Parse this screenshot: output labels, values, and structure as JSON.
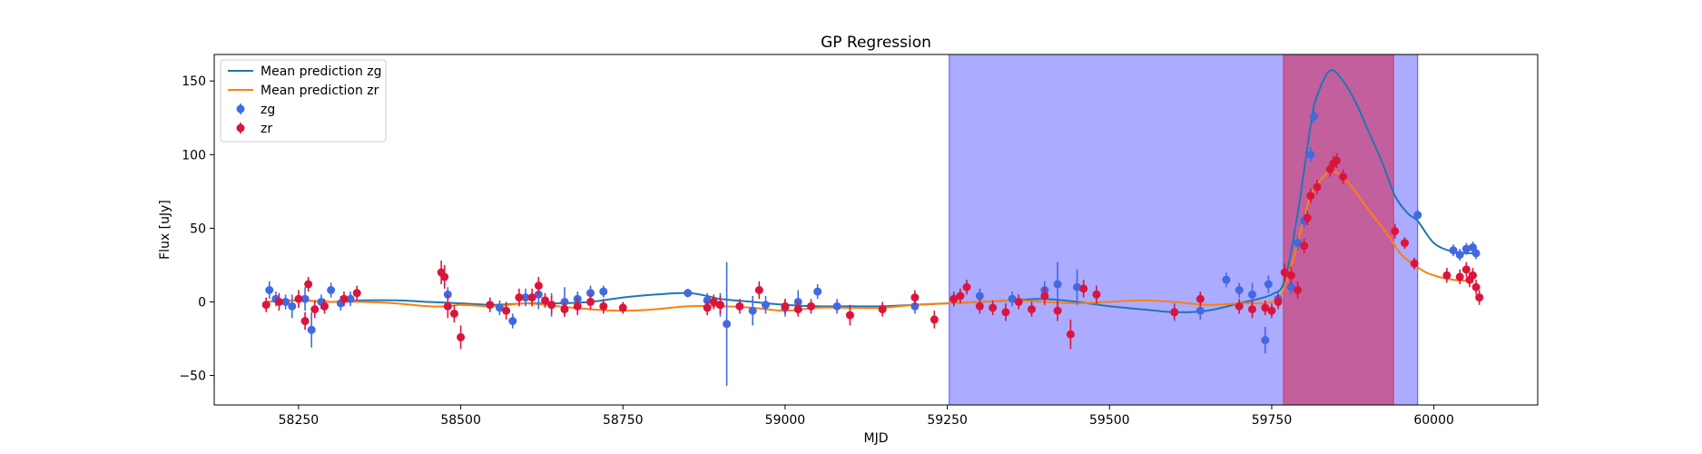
{
  "chart_data": {
    "type": "scatter",
    "title": "GP Regression",
    "xlabel": "MJD",
    "ylabel": "Flux [uJy]",
    "xlim": [
      58120,
      60160
    ],
    "ylim": [
      -70,
      168
    ],
    "xticks": [
      58250,
      58500,
      58750,
      59000,
      59250,
      59500,
      59750,
      60000
    ],
    "yticks": [
      -50,
      0,
      50,
      100,
      150
    ],
    "legend": {
      "placement": "upper left",
      "entries": [
        "Mean prediction zg",
        "Mean prediction zr",
        "zg",
        "zr"
      ]
    },
    "shaded_regions": [
      {
        "x0": 59253,
        "x1": 59975,
        "color": "#0000ff",
        "alpha": 0.33
      },
      {
        "x0": 59768,
        "x1": 59938,
        "color": "#dc143c",
        "alpha": 0.5
      }
    ],
    "colors": {
      "zg": "#4169e1",
      "zr": "#dc143c",
      "mean_zg": "#1f77b4",
      "mean_zr": "#ff7f0e"
    },
    "series": [
      {
        "name": "Mean prediction zg",
        "kind": "line",
        "color": "#1f77b4",
        "x": [
          58200,
          58250,
          58300,
          58350,
          58400,
          58450,
          58500,
          58550,
          58600,
          58650,
          58700,
          58750,
          58800,
          58850,
          58880,
          58900,
          58950,
          59000,
          59050,
          59100,
          59150,
          59200,
          59250,
          59300,
          59350,
          59400,
          59450,
          59500,
          59550,
          59600,
          59650,
          59700,
          59750,
          59770,
          59790,
          59810,
          59820,
          59840,
          59860,
          59880,
          59900,
          59920,
          59940,
          59960,
          59975,
          60000,
          60030,
          60060
        ],
        "y": [
          0,
          1,
          0,
          1,
          1,
          0,
          -1,
          -2,
          -1,
          -1,
          0,
          3,
          5,
          6,
          4,
          2,
          0,
          -2,
          -3,
          -3,
          -3,
          -2,
          -1,
          0,
          1,
          2,
          0,
          -3,
          -5,
          -7,
          -6,
          -1,
          5,
          15,
          60,
          120,
          140,
          157,
          150,
          135,
          115,
          95,
          72,
          60,
          55,
          40,
          34,
          33
        ]
      },
      {
        "name": "Mean prediction zr",
        "kind": "line",
        "color": "#ff7f0e",
        "x": [
          58200,
          58250,
          58300,
          58350,
          58400,
          58450,
          58480,
          58500,
          58550,
          58600,
          58650,
          58700,
          58750,
          58800,
          58850,
          58900,
          58950,
          59000,
          59050,
          59100,
          59150,
          59200,
          59250,
          59300,
          59350,
          59400,
          59450,
          59500,
          59550,
          59600,
          59650,
          59700,
          59750,
          59770,
          59790,
          59810,
          59830,
          59845,
          59870,
          59900,
          59930,
          59950,
          59980,
          60000,
          60030,
          60060
        ],
        "y": [
          0,
          1,
          0,
          0,
          -1,
          -3,
          -3,
          -2,
          -3,
          -1,
          -3,
          -5,
          -6,
          -5,
          -3,
          -3,
          -4,
          -6,
          -4,
          -4,
          -4,
          -2,
          -1,
          0,
          1,
          0,
          -1,
          0,
          1,
          0,
          -2,
          -1,
          0,
          10,
          40,
          72,
          85,
          89,
          80,
          62,
          45,
          32,
          22,
          18,
          15,
          14
        ]
      },
      {
        "name": "zg",
        "kind": "errorbar",
        "color": "#4169e1",
        "x": [
          58205,
          58215,
          58230,
          58240,
          58260,
          58270,
          58285,
          58300,
          58315,
          58330,
          58480,
          58560,
          58580,
          58600,
          58620,
          58640,
          58660,
          58680,
          58700,
          58720,
          58850,
          58880,
          58900,
          58910,
          58950,
          58970,
          59000,
          59020,
          59050,
          59080,
          59200,
          59260,
          59300,
          59350,
          59400,
          59420,
          59450,
          59600,
          59640,
          59680,
          59700,
          59720,
          59740,
          59745,
          59760,
          59780,
          59790,
          59800,
          59810,
          59815,
          59975,
          60030,
          60040,
          60050,
          60060,
          60065
        ],
        "y": [
          8,
          2,
          0,
          -3,
          2,
          -19,
          0,
          8,
          -1,
          2,
          5,
          -4,
          -13,
          3,
          5,
          -2,
          0,
          2,
          6,
          7,
          6,
          1,
          -2,
          -15,
          -6,
          -2,
          -4,
          0,
          7,
          -3,
          -3,
          2,
          4,
          2,
          8,
          12,
          10,
          -7,
          -6,
          15,
          8,
          5,
          -26,
          12,
          2,
          10,
          40,
          55,
          100,
          126,
          59,
          35,
          32,
          36,
          37,
          33
        ],
        "err": [
          6,
          5,
          5,
          8,
          8,
          12,
          5,
          5,
          5,
          5,
          5,
          5,
          5,
          6,
          10,
          8,
          10,
          5,
          5,
          4,
          3,
          5,
          8,
          42,
          10,
          6,
          6,
          8,
          5,
          5,
          5,
          5,
          5,
          5,
          6,
          15,
          12,
          6,
          6,
          5,
          5,
          8,
          9,
          6,
          5,
          5,
          5,
          5,
          5,
          5,
          4,
          4,
          4,
          4,
          4,
          4
        ]
      },
      {
        "name": "zr",
        "kind": "errorbar",
        "color": "#dc143c",
        "x": [
          58200,
          58220,
          58250,
          58260,
          58265,
          58275,
          58290,
          58320,
          58340,
          58470,
          58475,
          58480,
          58490,
          58500,
          58545,
          58570,
          58590,
          58610,
          58620,
          58630,
          58640,
          58660,
          58680,
          58700,
          58720,
          58750,
          58880,
          58890,
          58900,
          58930,
          58960,
          59000,
          59020,
          59040,
          59100,
          59150,
          59200,
          59230,
          59260,
          59270,
          59280,
          59300,
          59320,
          59340,
          59360,
          59380,
          59400,
          59420,
          59440,
          59460,
          59480,
          59600,
          59640,
          59700,
          59720,
          59740,
          59750,
          59760,
          59770,
          59780,
          59790,
          59800,
          59805,
          59810,
          59820,
          59840,
          59845,
          59850,
          59860,
          59940,
          59955,
          59970,
          60020,
          60040,
          60050,
          60055,
          60060,
          60065,
          60070
        ],
        "y": [
          -2,
          0,
          2,
          -13,
          12,
          -5,
          -3,
          2,
          6,
          20,
          17,
          -3,
          -8,
          -24,
          -2,
          -6,
          3,
          3,
          11,
          1,
          -2,
          -5,
          -3,
          0,
          -3,
          -4,
          -4,
          0,
          -2,
          -3,
          8,
          -3,
          -5,
          -3,
          -9,
          -5,
          3,
          -12,
          2,
          4,
          10,
          -3,
          -4,
          -7,
          0,
          -5,
          4,
          -6,
          -22,
          9,
          5,
          -7,
          2,
          -3,
          -5,
          -4,
          -6,
          0,
          20,
          18,
          8,
          38,
          57,
          72,
          78,
          90,
          94,
          96,
          85,
          48,
          40,
          26,
          18,
          17,
          22,
          15,
          18,
          10,
          3
        ],
        "err": [
          5,
          6,
          6,
          6,
          5,
          6,
          5,
          5,
          5,
          8,
          8,
          8,
          6,
          8,
          5,
          6,
          6,
          6,
          6,
          5,
          6,
          5,
          6,
          5,
          5,
          4,
          5,
          5,
          6,
          5,
          6,
          5,
          5,
          5,
          7,
          5,
          5,
          6,
          5,
          5,
          5,
          5,
          5,
          6,
          5,
          5,
          6,
          7,
          10,
          6,
          6,
          5,
          5,
          5,
          6,
          5,
          5,
          5,
          6,
          6,
          6,
          5,
          5,
          5,
          5,
          5,
          5,
          5,
          5,
          5,
          4,
          4,
          5,
          5,
          5,
          5,
          5,
          5,
          5
        ]
      }
    ]
  }
}
